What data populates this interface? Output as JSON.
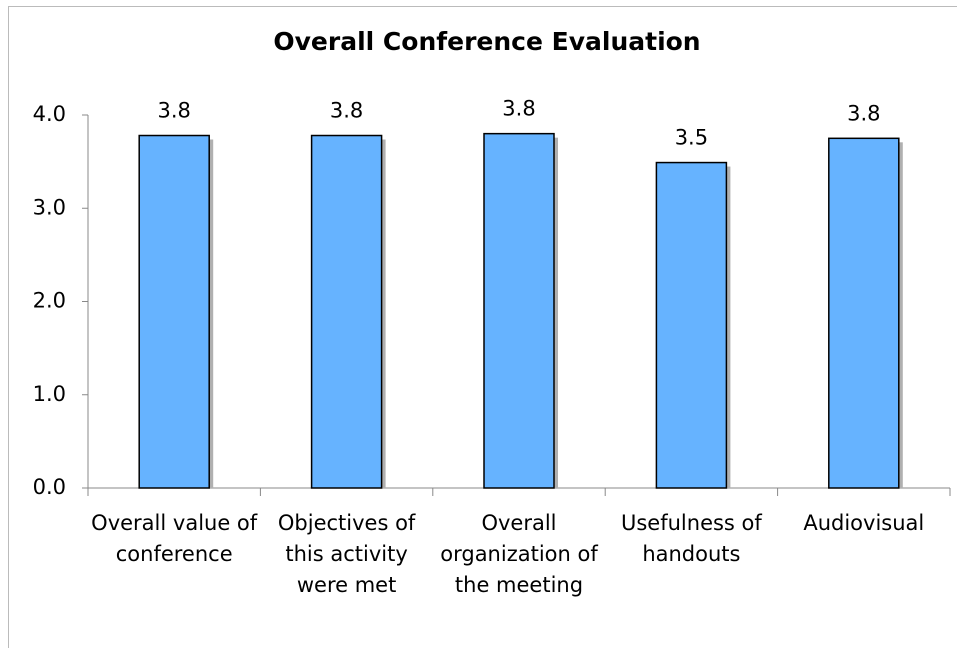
{
  "chart_data": {
    "type": "bar",
    "title": "Overall Conference Evaluation",
    "categories": [
      "Overall value of conference",
      "Objectives of this activity were met",
      "Overall organization of the meeting",
      "Usefulness of handouts",
      "Audiovisual"
    ],
    "values": [
      3.78,
      3.78,
      3.8,
      3.49,
      3.75
    ],
    "value_labels": [
      "3.8",
      "3.8",
      "3.8",
      "3.5",
      "3.8"
    ],
    "color": "#66b3ff",
    "ylim": [
      0,
      4
    ],
    "yticks": [
      {
        "value": 0,
        "label": "0.0"
      },
      {
        "value": 1,
        "label": "1.0"
      },
      {
        "value": 2,
        "label": "2.0"
      },
      {
        "value": 3,
        "label": "3.0"
      },
      {
        "value": 4,
        "label": "4.0"
      }
    ]
  }
}
